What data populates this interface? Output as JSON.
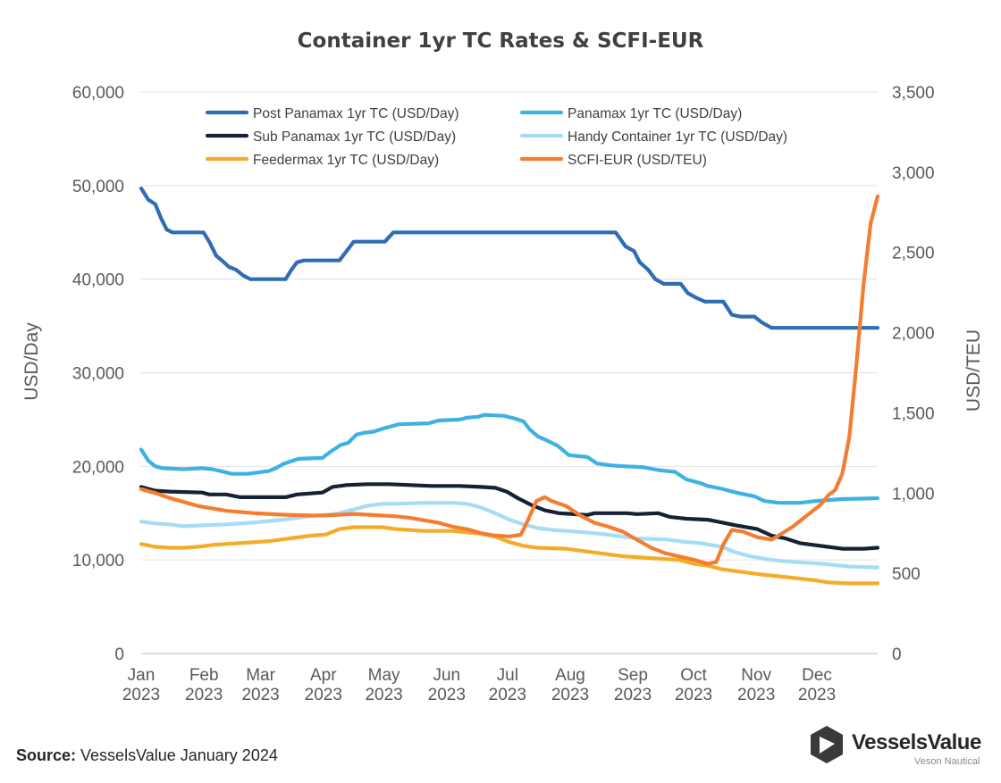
{
  "chart_data": {
    "type": "line",
    "title": "Container 1yr TC Rates & SCFI-EUR",
    "ylabel": "USD/Day",
    "y2label": "USD/TEU",
    "ylim": [
      0,
      60000
    ],
    "y2lim": [
      0,
      3500
    ],
    "yticks": [
      "0",
      "10,000",
      "20,000",
      "30,000",
      "40,000",
      "50,000",
      "60,000"
    ],
    "y2ticks": [
      "0",
      "500",
      "1,000",
      "1,500",
      "2,000",
      "2,500",
      "3,000",
      "3,500"
    ],
    "xlim": [
      0,
      52
    ],
    "xticks": [
      {
        "month": "Jan",
        "year": "2023",
        "x": 0
      },
      {
        "month": "Feb",
        "year": "2023",
        "x": 4.43
      },
      {
        "month": "Mar",
        "year": "2023",
        "x": 8.43
      },
      {
        "month": "Apr",
        "year": "2023",
        "x": 12.86
      },
      {
        "month": "May",
        "year": "2023",
        "x": 17.14
      },
      {
        "month": "Jun",
        "year": "2023",
        "x": 21.57
      },
      {
        "month": "Jul",
        "year": "2023",
        "x": 25.86
      },
      {
        "month": "Aug",
        "year": "2023",
        "x": 30.29
      },
      {
        "month": "Sep",
        "year": "2023",
        "x": 34.71
      },
      {
        "month": "Oct",
        "year": "2023",
        "x": 39.0
      },
      {
        "month": "Nov",
        "year": "2023",
        "x": 43.43
      },
      {
        "month": "Dec",
        "year": "2023",
        "x": 47.71
      }
    ],
    "legend_position": "top",
    "grid": "horizontal",
    "series": [
      {
        "name": "Post Panamax 1yr TC (USD/Day)",
        "axis": "left",
        "color": "#2E6DB4",
        "points": [
          [
            0,
            49700
          ],
          [
            0.5,
            48500
          ],
          [
            1,
            48000
          ],
          [
            1.4,
            46500
          ],
          [
            1.8,
            45300
          ],
          [
            2.2,
            45000
          ],
          [
            4.4,
            45000
          ],
          [
            4.8,
            44000
          ],
          [
            5.3,
            42500
          ],
          [
            5.7,
            42000
          ],
          [
            6.2,
            41300
          ],
          [
            6.7,
            41000
          ],
          [
            7.2,
            40400
          ],
          [
            7.7,
            40000
          ],
          [
            10.2,
            40000
          ],
          [
            10.6,
            41000
          ],
          [
            11,
            41800
          ],
          [
            11.5,
            42000
          ],
          [
            14,
            42000
          ],
          [
            14.6,
            43200
          ],
          [
            15,
            44000
          ],
          [
            17.2,
            44000
          ],
          [
            17.8,
            45000
          ],
          [
            33.5,
            45000
          ],
          [
            34.2,
            43500
          ],
          [
            34.8,
            43000
          ],
          [
            35.2,
            41800
          ],
          [
            35.8,
            41000
          ],
          [
            36.3,
            40000
          ],
          [
            36.9,
            39500
          ],
          [
            38.1,
            39500
          ],
          [
            38.6,
            38500
          ],
          [
            39.2,
            38000
          ],
          [
            39.8,
            37600
          ],
          [
            41.1,
            37600
          ],
          [
            41.7,
            36200
          ],
          [
            42.3,
            36000
          ],
          [
            43.3,
            36000
          ],
          [
            43.8,
            35400
          ],
          [
            44.5,
            34800
          ],
          [
            52,
            34800
          ]
        ]
      },
      {
        "name": "Panamax 1yr TC (USD/Day)",
        "axis": "left",
        "color": "#3EB1E3",
        "points": [
          [
            0,
            21800
          ],
          [
            0.5,
            20600
          ],
          [
            1,
            20000
          ],
          [
            1.5,
            19800
          ],
          [
            3,
            19700
          ],
          [
            4.3,
            19800
          ],
          [
            5,
            19700
          ],
          [
            5.6,
            19500
          ],
          [
            6.4,
            19200
          ],
          [
            7.5,
            19200
          ],
          [
            8,
            19300
          ],
          [
            9,
            19500
          ],
          [
            9.5,
            19800
          ],
          [
            10.1,
            20300
          ],
          [
            11.1,
            20800
          ],
          [
            12.8,
            20900
          ],
          [
            13.3,
            21500
          ],
          [
            14.1,
            22300
          ],
          [
            14.6,
            22500
          ],
          [
            15.2,
            23400
          ],
          [
            15.8,
            23600
          ],
          [
            16.4,
            23700
          ],
          [
            17,
            24000
          ],
          [
            18.2,
            24500
          ],
          [
            20.3,
            24600
          ],
          [
            21,
            24900
          ],
          [
            22.5,
            25000
          ],
          [
            23,
            25200
          ],
          [
            23.8,
            25300
          ],
          [
            24.2,
            25500
          ],
          [
            25.6,
            25400
          ],
          [
            26.4,
            25100
          ],
          [
            27,
            24800
          ],
          [
            27.4,
            24000
          ],
          [
            28,
            23200
          ],
          [
            28.6,
            22800
          ],
          [
            29.4,
            22200
          ],
          [
            30.2,
            21200
          ],
          [
            31.5,
            21000
          ],
          [
            32.2,
            20300
          ],
          [
            33.2,
            20100
          ],
          [
            34.2,
            20000
          ],
          [
            35.5,
            19900
          ],
          [
            36.5,
            19600
          ],
          [
            37.7,
            19400
          ],
          [
            38.5,
            18600
          ],
          [
            39.5,
            18200
          ],
          [
            40,
            17900
          ],
          [
            41,
            17600
          ],
          [
            42,
            17200
          ],
          [
            43.3,
            16800
          ],
          [
            44,
            16300
          ],
          [
            45,
            16100
          ],
          [
            46.5,
            16100
          ],
          [
            47.7,
            16300
          ],
          [
            48.5,
            16400
          ],
          [
            49.5,
            16500
          ],
          [
            52,
            16600
          ]
        ]
      },
      {
        "name": "Sub Panamax 1yr TC (USD/Day)",
        "axis": "left",
        "color": "#162234",
        "points": [
          [
            0,
            17800
          ],
          [
            1,
            17400
          ],
          [
            2,
            17300
          ],
          [
            4.3,
            17200
          ],
          [
            4.8,
            17000
          ],
          [
            6,
            17000
          ],
          [
            7,
            16700
          ],
          [
            10.2,
            16700
          ],
          [
            11,
            17000
          ],
          [
            12.8,
            17200
          ],
          [
            13.5,
            17800
          ],
          [
            14.5,
            18000
          ],
          [
            16,
            18100
          ],
          [
            17.5,
            18100
          ],
          [
            19,
            18000
          ],
          [
            20.5,
            17900
          ],
          [
            22.5,
            17900
          ],
          [
            24,
            17800
          ],
          [
            25,
            17700
          ],
          [
            25.8,
            17300
          ],
          [
            26.6,
            16600
          ],
          [
            27.5,
            15900
          ],
          [
            28.5,
            15300
          ],
          [
            29.5,
            15000
          ],
          [
            31.5,
            14800
          ],
          [
            32,
            15000
          ],
          [
            34.3,
            15000
          ],
          [
            35,
            14900
          ],
          [
            36.5,
            15000
          ],
          [
            37.3,
            14600
          ],
          [
            38.5,
            14400
          ],
          [
            40,
            14300
          ],
          [
            41,
            14000
          ],
          [
            42,
            13700
          ],
          [
            43.5,
            13300
          ],
          [
            44.5,
            12600
          ],
          [
            45.5,
            12300
          ],
          [
            46.5,
            11800
          ],
          [
            47.5,
            11600
          ],
          [
            48.5,
            11400
          ],
          [
            49.5,
            11200
          ],
          [
            51,
            11200
          ],
          [
            52,
            11300
          ]
        ]
      },
      {
        "name": "Handy Container 1yr TC (USD/Day)",
        "axis": "left",
        "color": "#A6DCF5",
        "points": [
          [
            0,
            14100
          ],
          [
            1,
            13900
          ],
          [
            2,
            13800
          ],
          [
            3,
            13600
          ],
          [
            4.3,
            13700
          ],
          [
            6,
            13800
          ],
          [
            8,
            14000
          ],
          [
            10,
            14300
          ],
          [
            12,
            14700
          ],
          [
            13,
            14800
          ],
          [
            14,
            15000
          ],
          [
            15,
            15400
          ],
          [
            16,
            15800
          ],
          [
            17,
            16000
          ],
          [
            18,
            16000
          ],
          [
            20,
            16100
          ],
          [
            22,
            16100
          ],
          [
            23,
            16000
          ],
          [
            24,
            15600
          ],
          [
            25,
            15000
          ],
          [
            26,
            14300
          ],
          [
            27,
            13800
          ],
          [
            28,
            13400
          ],
          [
            29,
            13200
          ],
          [
            31,
            13000
          ],
          [
            33,
            12700
          ],
          [
            35,
            12300
          ],
          [
            37,
            12200
          ],
          [
            38.5,
            11900
          ],
          [
            39.5,
            11800
          ],
          [
            41,
            11400
          ],
          [
            42,
            10800
          ],
          [
            43,
            10400
          ],
          [
            44.5,
            10000
          ],
          [
            46,
            9800
          ],
          [
            48,
            9600
          ],
          [
            50,
            9300
          ],
          [
            52,
            9200
          ]
        ]
      },
      {
        "name": "Feedermax 1yr TC (USD/Day)",
        "axis": "left",
        "color": "#F3AC27",
        "points": [
          [
            0,
            11700
          ],
          [
            1,
            11400
          ],
          [
            2,
            11300
          ],
          [
            3,
            11300
          ],
          [
            4,
            11400
          ],
          [
            5,
            11600
          ],
          [
            6,
            11700
          ],
          [
            8,
            11900
          ],
          [
            9,
            12000
          ],
          [
            10,
            12200
          ],
          [
            11,
            12400
          ],
          [
            12,
            12600
          ],
          [
            13,
            12700
          ],
          [
            14,
            13300
          ],
          [
            15,
            13500
          ],
          [
            17,
            13500
          ],
          [
            18,
            13300
          ],
          [
            20,
            13100
          ],
          [
            22,
            13100
          ],
          [
            24,
            12800
          ],
          [
            25,
            12500
          ],
          [
            26,
            11900
          ],
          [
            27,
            11500
          ],
          [
            28,
            11300
          ],
          [
            30,
            11200
          ],
          [
            31,
            11000
          ],
          [
            32,
            10800
          ],
          [
            33,
            10600
          ],
          [
            34,
            10400
          ],
          [
            36,
            10200
          ],
          [
            38,
            10000
          ],
          [
            39,
            9600
          ],
          [
            40,
            9400
          ],
          [
            41,
            9000
          ],
          [
            42,
            8800
          ],
          [
            43,
            8600
          ],
          [
            44,
            8400
          ],
          [
            46,
            8100
          ],
          [
            47.7,
            7800
          ],
          [
            48.5,
            7600
          ],
          [
            50,
            7500
          ],
          [
            52,
            7500
          ]
        ]
      },
      {
        "name": "SCFI-EUR (USD/TEU)",
        "axis": "right",
        "color": "#F47D30",
        "points": [
          [
            0,
            1025
          ],
          [
            1,
            1000
          ],
          [
            2,
            970
          ],
          [
            3,
            945
          ],
          [
            4,
            920
          ],
          [
            5,
            905
          ],
          [
            6,
            890
          ],
          [
            8,
            875
          ],
          [
            10,
            865
          ],
          [
            12,
            860
          ],
          [
            13,
            860
          ],
          [
            14,
            865
          ],
          [
            15,
            870
          ],
          [
            16,
            865
          ],
          [
            17,
            860
          ],
          [
            18,
            855
          ],
          [
            19,
            845
          ],
          [
            20,
            830
          ],
          [
            21,
            815
          ],
          [
            22,
            790
          ],
          [
            23,
            775
          ],
          [
            24,
            750
          ],
          [
            25,
            735
          ],
          [
            26,
            730
          ],
          [
            26.8,
            740
          ],
          [
            27.3,
            830
          ],
          [
            27.9,
            950
          ],
          [
            28.5,
            975
          ],
          [
            29,
            950
          ],
          [
            30,
            920
          ],
          [
            31,
            860
          ],
          [
            32,
            815
          ],
          [
            33,
            790
          ],
          [
            34,
            760
          ],
          [
            35,
            710
          ],
          [
            36,
            660
          ],
          [
            37,
            625
          ],
          [
            38,
            605
          ],
          [
            39,
            585
          ],
          [
            40,
            560
          ],
          [
            40.6,
            570
          ],
          [
            41.1,
            680
          ],
          [
            41.7,
            770
          ],
          [
            42.5,
            760
          ],
          [
            43.5,
            725
          ],
          [
            44.5,
            710
          ],
          [
            45,
            735
          ],
          [
            46,
            790
          ],
          [
            47,
            860
          ],
          [
            48,
            930
          ],
          [
            48.5,
            985
          ],
          [
            49,
            1020
          ],
          [
            49.5,
            1120
          ],
          [
            50,
            1350
          ],
          [
            50.5,
            1800
          ],
          [
            51,
            2300
          ],
          [
            51.5,
            2680
          ],
          [
            52,
            2850
          ]
        ]
      }
    ]
  },
  "source": {
    "label": "Source:",
    "text": " VesselsValue January 2024"
  },
  "logo": {
    "name": "VesselsValue",
    "sub": "Veson Nautical"
  }
}
